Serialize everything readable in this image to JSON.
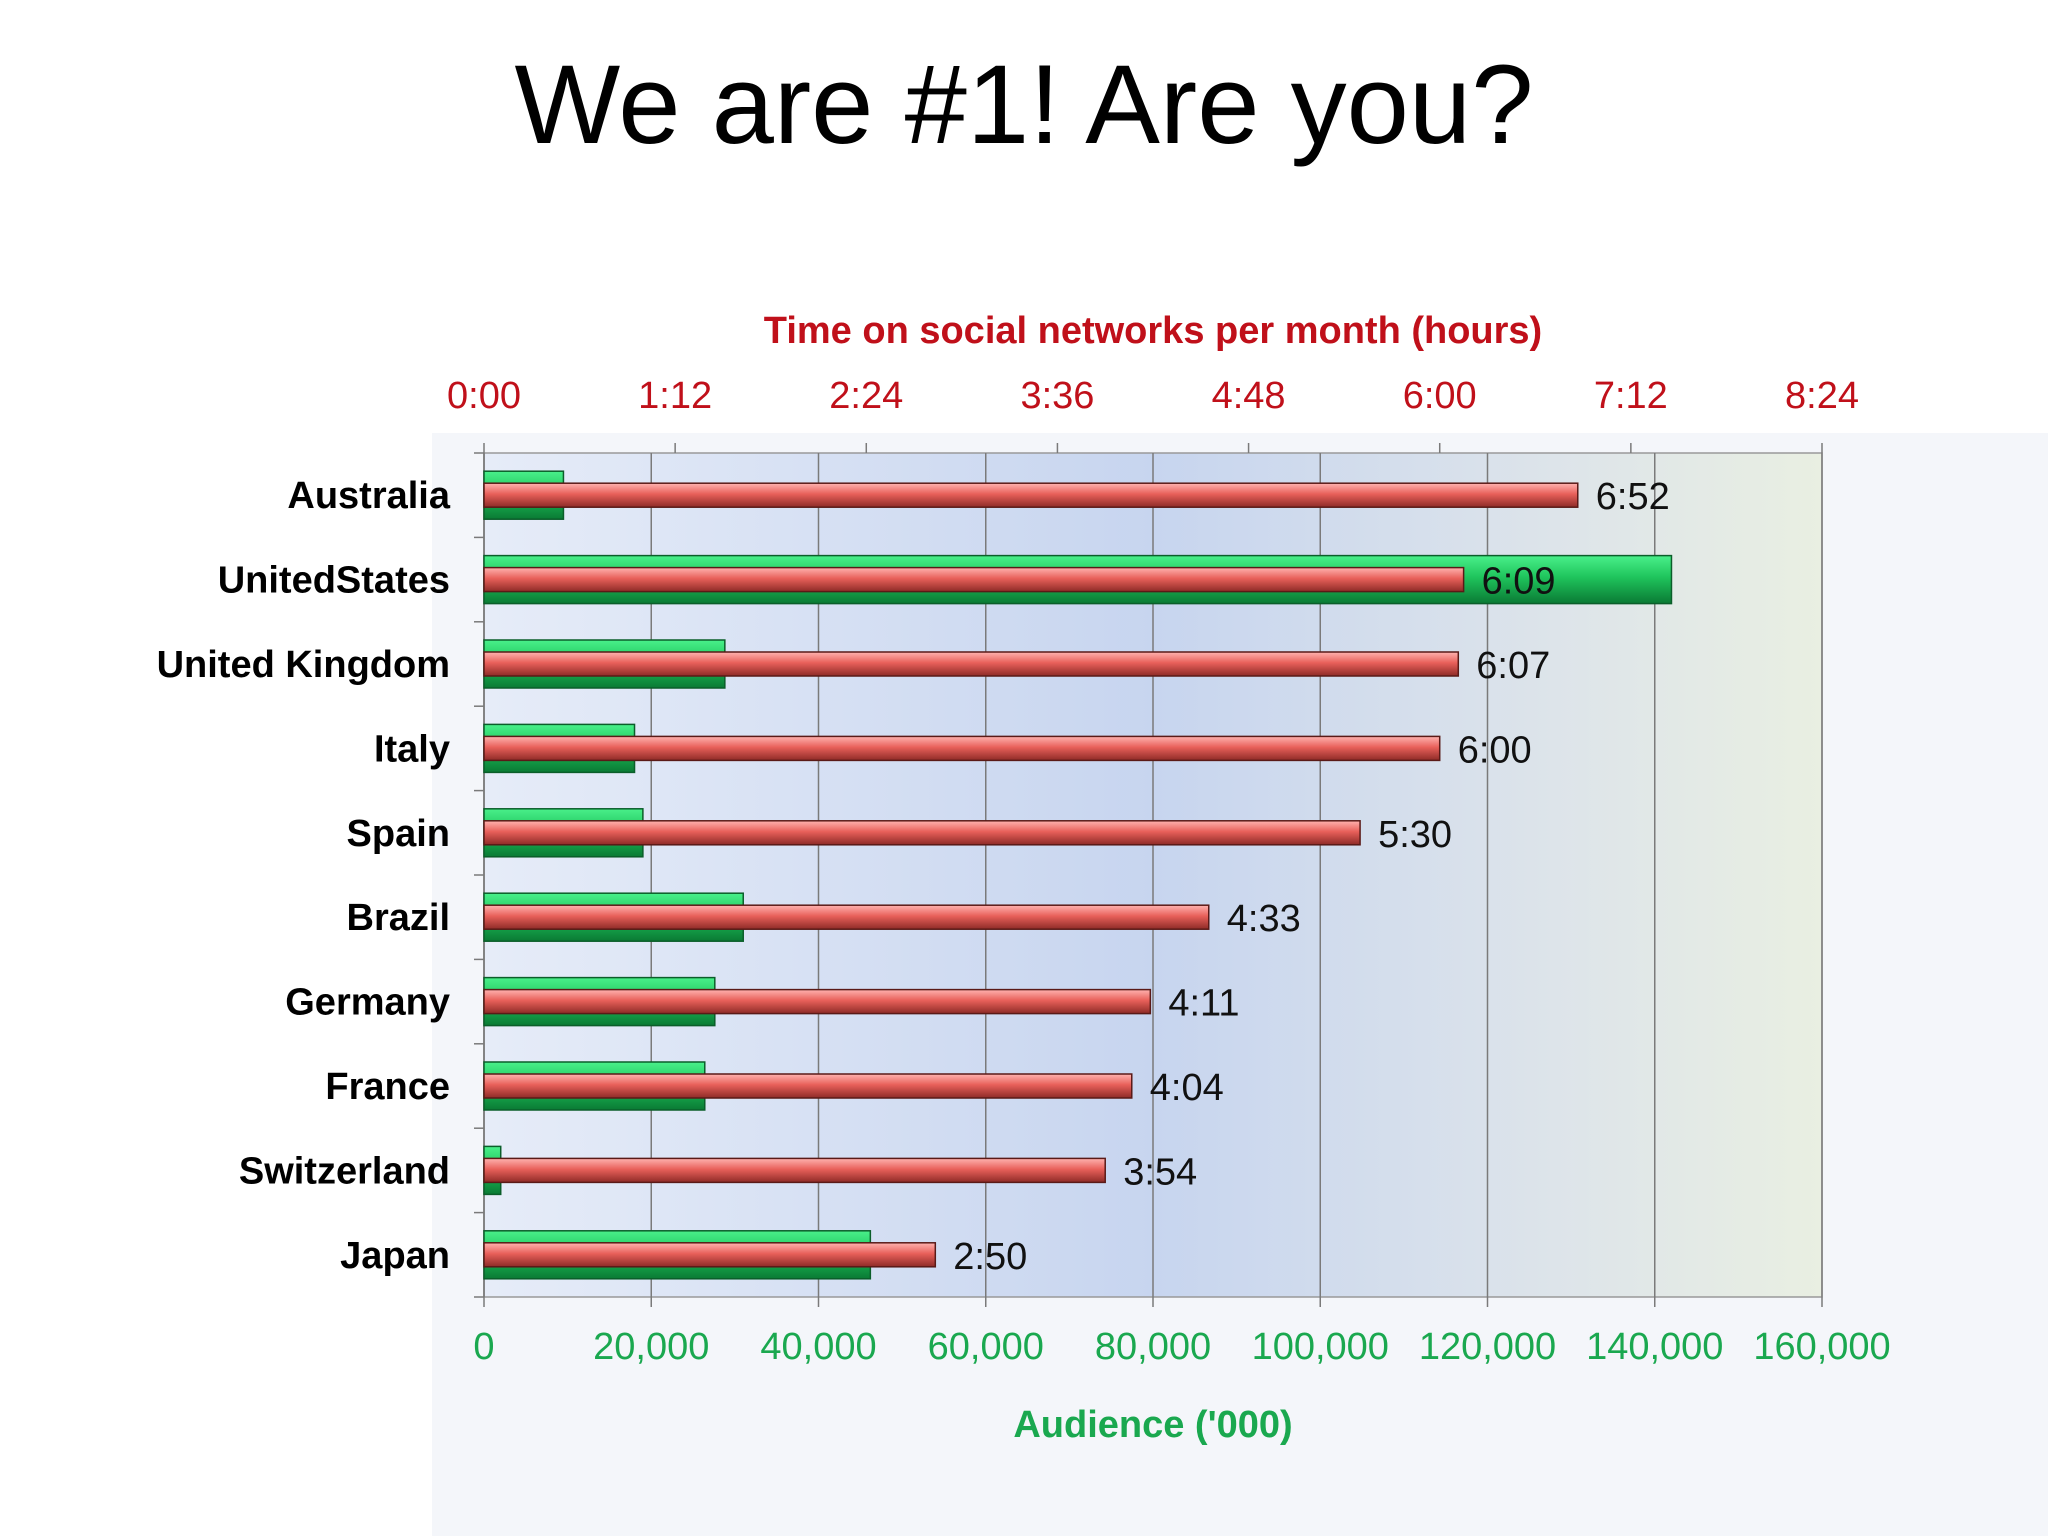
{
  "slide": {
    "title": "We are #1!  Are you?"
  },
  "chart_data": {
    "type": "bar",
    "orientation": "horizontal",
    "categories": [
      "Australia",
      "UnitedStates",
      "United Kingdom",
      "Italy",
      "Spain",
      "Brazil",
      "Germany",
      "France",
      "Switzerland",
      "Japan"
    ],
    "series": [
      {
        "name": "Audience ('000)",
        "axis": "bottom",
        "color": "#1DB954",
        "values": [
          9500,
          142000,
          28800,
          18000,
          19000,
          31000,
          27600,
          26400,
          2000,
          46200
        ]
      },
      {
        "name": "Time on social networks per month (hours)",
        "axis": "top",
        "color": "#D9534F",
        "values_minutes": [
          412,
          369,
          367,
          360,
          330,
          273,
          251,
          244,
          234,
          170
        ],
        "labels": [
          "6:52",
          "6:09",
          "6:07",
          "6:00",
          "5:30",
          "4:33",
          "4:11",
          "4:04",
          "3:54",
          "2:50"
        ]
      }
    ],
    "top_axis": {
      "title": "Time on social networks per month (hours)",
      "ticks": [
        "0:00",
        "1:12",
        "2:24",
        "3:36",
        "4:48",
        "6:00",
        "7:12",
        "8:24"
      ],
      "range_minutes": [
        0,
        504
      ],
      "color": "#C0101A"
    },
    "bottom_axis": {
      "title": "Audience ('000)",
      "ticks": [
        "0",
        "20,000",
        "40,000",
        "60,000",
        "80,000",
        "100,000",
        "120,000",
        "140,000",
        "160,000"
      ],
      "range": [
        0,
        160000
      ],
      "color": "#1AA84F"
    },
    "grid": true,
    "legend": "none"
  }
}
